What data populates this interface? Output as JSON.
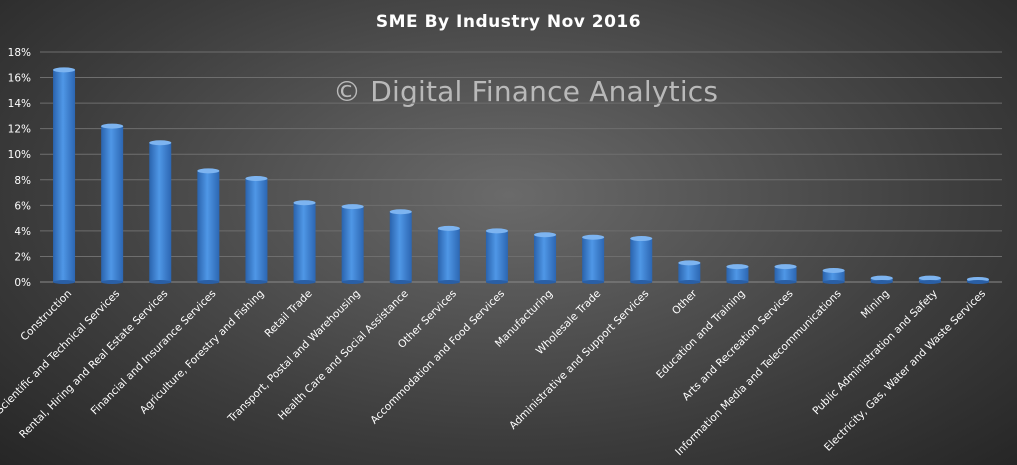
{
  "chart_data": {
    "type": "bar",
    "title": "SME By Industry  Nov 2016",
    "watermark": "© Digital Finance Analytics",
    "xlabel": "",
    "ylabel": "",
    "ylim": [
      0,
      18
    ],
    "yticks": [
      "0%",
      "2%",
      "4%",
      "6%",
      "8%",
      "10%",
      "12%",
      "14%",
      "16%",
      "18%"
    ],
    "grid": true,
    "bar_color": "#3f86d6",
    "categories": [
      "Construction",
      "Professional, Scientific and Technical Services",
      "Rental, Hiring and Real Estate Services",
      "Financial and Insurance Services",
      "Agriculture, Forestry and Fishing",
      "Retail Trade",
      "Transport, Postal and Warehousing",
      "Health Care and Social Assistance",
      "Other Services",
      "Accommodation and Food Services",
      "Manufacturing",
      "Wholesale Trade",
      "Administrative and Support Services",
      "Other",
      "Education and Training",
      "Arts and Recreation Services",
      "Information Media and Telecommunications",
      "Mining",
      "Public Administration and Safety",
      "Electricity, Gas, Water and Waste Services"
    ],
    "values": [
      16.6,
      12.2,
      10.9,
      8.7,
      8.1,
      6.2,
      5.9,
      5.5,
      4.2,
      4.0,
      3.7,
      3.5,
      3.4,
      1.5,
      1.2,
      1.2,
      0.9,
      0.3,
      0.3,
      0.2
    ]
  }
}
